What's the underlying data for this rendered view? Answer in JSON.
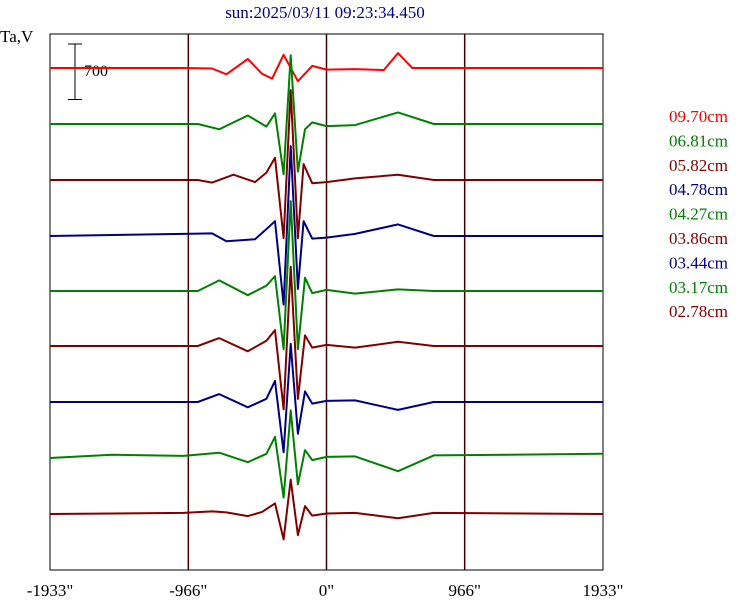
{
  "title": "sun:2025/03/11 09:23:34.450",
  "chart_data": {
    "type": "line",
    "ylabel": "Ta,V",
    "scale_bar": {
      "label": "700",
      "value": 700
    },
    "xlim": [
      -1933,
      1933
    ],
    "x_ticks": [
      {
        "value": -1933,
        "label": "-1933\""
      },
      {
        "value": -966,
        "label": "-966\""
      },
      {
        "value": 0,
        "label": "0\""
      },
      {
        "value": 966,
        "label": "966\""
      },
      {
        "value": 1933,
        "label": "1933\""
      }
    ],
    "vertical_lines": [
      -966,
      0,
      966
    ],
    "grid": false,
    "legend_position": "right",
    "series": [
      {
        "name": "09.70cm",
        "color": "#ff0000",
        "x": [
          -1933,
          -1000,
          -800,
          -700,
          -550,
          -450,
          -380,
          -300,
          -200,
          -100,
          0,
          200,
          400,
          500,
          600,
          700,
          1933
        ],
        "y": [
          0,
          0,
          -10,
          -120,
          170,
          -110,
          -200,
          250,
          -250,
          40,
          -30,
          -20,
          -40,
          280,
          0,
          0,
          0
        ]
      },
      {
        "name": "06.81cm",
        "color": "#008000",
        "x": [
          -1933,
          -900,
          -750,
          -550,
          -420,
          -360,
          -300,
          -250,
          -200,
          -150,
          -100,
          0,
          200,
          500,
          750,
          1933
        ],
        "y": [
          0,
          0,
          -100,
          160,
          -50,
          200,
          -950,
          1300,
          -900,
          -100,
          30,
          -40,
          -20,
          220,
          0,
          0
        ]
      },
      {
        "name": "05.82cm",
        "color": "#800000",
        "x": [
          -1933,
          -900,
          -800,
          -650,
          -500,
          -420,
          -360,
          -300,
          -250,
          -200,
          -160,
          -100,
          0,
          200,
          500,
          750,
          1933
        ],
        "y": [
          0,
          0,
          -50,
          100,
          -40,
          140,
          420,
          -1100,
          1700,
          -1100,
          300,
          -60,
          -40,
          30,
          100,
          0,
          0
        ]
      },
      {
        "name": "04.78cm",
        "color": "#000080",
        "x": [
          -1933,
          -1000,
          -800,
          -700,
          -500,
          -420,
          -360,
          -300,
          -250,
          -200,
          -160,
          -100,
          0,
          200,
          500,
          750,
          1933
        ],
        "y": [
          0,
          40,
          50,
          -100,
          -60,
          130,
          280,
          -1300,
          1700,
          -1000,
          280,
          -50,
          -30,
          40,
          220,
          0,
          0
        ]
      },
      {
        "name": "04.27cm",
        "color": "#008000",
        "x": [
          -1933,
          -900,
          -750,
          -550,
          -420,
          -360,
          -300,
          -250,
          -200,
          -150,
          -100,
          0,
          200,
          500,
          750,
          1933
        ],
        "y": [
          0,
          0,
          200,
          -80,
          100,
          280,
          -1100,
          1700,
          -1100,
          250,
          -40,
          20,
          -50,
          30,
          0,
          0
        ]
      },
      {
        "name": "03.86cm",
        "color": "#800000",
        "x": [
          -1933,
          -900,
          -750,
          -550,
          -420,
          -360,
          -300,
          -250,
          -200,
          -150,
          -100,
          0,
          200,
          500,
          750,
          1933
        ],
        "y": [
          0,
          0,
          150,
          -100,
          100,
          300,
          -1200,
          1500,
          -1000,
          200,
          -30,
          20,
          -30,
          80,
          0,
          0
        ]
      },
      {
        "name": "03.44cm",
        "color": "#000080",
        "x": [
          -1933,
          -900,
          -750,
          -550,
          -420,
          -360,
          -300,
          -250,
          -200,
          -150,
          -100,
          0,
          200,
          500,
          750,
          1933
        ],
        "y": [
          0,
          0,
          150,
          -100,
          60,
          400,
          -950,
          1100,
          -600,
          200,
          -30,
          20,
          30,
          -150,
          0,
          0
        ]
      },
      {
        "name": "03.17cm",
        "color": "#008000",
        "x": [
          -1933,
          -1500,
          -1000,
          -750,
          -550,
          -420,
          -360,
          -300,
          -250,
          -200,
          -150,
          -100,
          0,
          200,
          500,
          750,
          1933
        ],
        "y": [
          0,
          60,
          40,
          100,
          -80,
          80,
          400,
          -750,
          900,
          -500,
          150,
          -40,
          20,
          30,
          -250,
          50,
          80
        ]
      },
      {
        "name": "02.78cm",
        "color": "#800000",
        "x": [
          -1933,
          -1000,
          -800,
          -700,
          -550,
          -450,
          -360,
          -300,
          -250,
          -200,
          -150,
          -100,
          0,
          200,
          500,
          750,
          1933
        ],
        "y": [
          0,
          20,
          50,
          30,
          -40,
          40,
          200,
          -480,
          650,
          -400,
          150,
          -30,
          10,
          20,
          -80,
          20,
          0
        ]
      }
    ]
  }
}
